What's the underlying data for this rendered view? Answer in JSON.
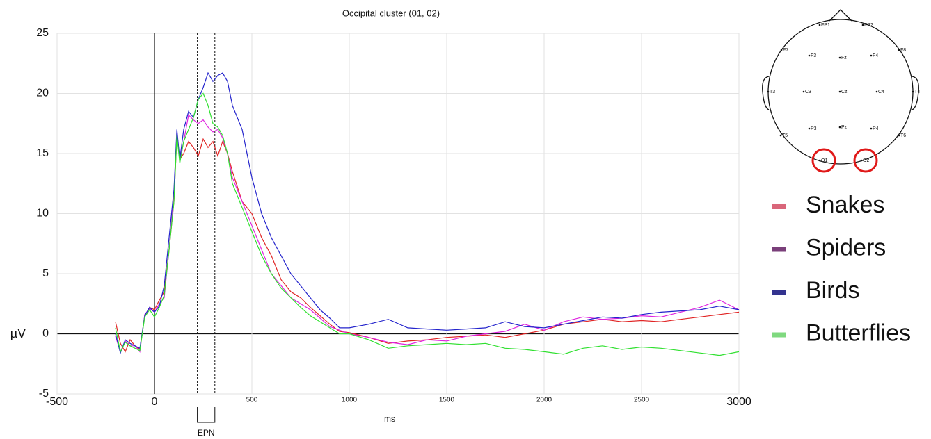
{
  "chart_data": {
    "type": "line",
    "title": "Occipital cluster (01, 02)",
    "xlabel": "ms",
    "ylabel": "µV",
    "x": [
      -200,
      -175,
      -150,
      -125,
      -100,
      -75,
      -50,
      -25,
      0,
      25,
      50,
      75,
      100,
      115,
      130,
      150,
      175,
      200,
      225,
      250,
      275,
      300,
      325,
      350,
      375,
      400,
      450,
      500,
      550,
      600,
      650,
      700,
      750,
      800,
      850,
      900,
      950,
      1000,
      1100,
      1200,
      1300,
      1400,
      1500,
      1600,
      1700,
      1800,
      1900,
      2000,
      2100,
      2200,
      2300,
      2400,
      2500,
      2600,
      2700,
      2800,
      2900,
      3000
    ],
    "series": [
      {
        "name": "Snakes",
        "color": "#e02424",
        "legend_color": "#d9667a",
        "values": [
          1.0,
          -0.8,
          -1.5,
          -0.5,
          -1.0,
          -1.3,
          1.5,
          2.2,
          2.0,
          2.8,
          3.5,
          7,
          11,
          16.5,
          14.5,
          15,
          16,
          15.5,
          14.8,
          16.2,
          15.5,
          16,
          14.8,
          16,
          15,
          13.5,
          11,
          10,
          8,
          6.5,
          4.5,
          3.5,
          3,
          2.2,
          1.5,
          0.8,
          0.2,
          0.1,
          -0.3,
          -0.8,
          -0.6,
          -0.5,
          -0.3,
          -0.2,
          -0.1,
          -0.3,
          0,
          0.3,
          0.8,
          1.0,
          1.2,
          1.0,
          1.1,
          1.0,
          1.2,
          1.4,
          1.6,
          1.8
        ]
      },
      {
        "name": "Spiders",
        "color": "#e024e0",
        "legend_color": "#7a3f7a",
        "values": [
          -0.2,
          -1.5,
          -0.6,
          -1.0,
          -1.0,
          -1.5,
          1.6,
          2.1,
          1.8,
          2.5,
          3,
          7,
          11.5,
          16.8,
          14.5,
          16,
          18.2,
          17.8,
          17.5,
          17.8,
          17.2,
          16.8,
          17,
          16.3,
          15,
          13,
          11,
          9,
          7,
          5,
          4,
          3,
          2.5,
          2,
          1.3,
          0.6,
          0.3,
          0,
          -0.3,
          -0.7,
          -0.9,
          -0.5,
          -0.6,
          -0.2,
          0,
          0.2,
          0.8,
          0.3,
          1.0,
          1.4,
          1.2,
          1.3,
          1.5,
          1.4,
          1.8,
          2.2,
          2.8,
          2.0
        ]
      },
      {
        "name": "Birds",
        "color": "#2424cc",
        "legend_color": "#33338f",
        "values": [
          0,
          -1.6,
          -0.5,
          -0.8,
          -1.0,
          -1.2,
          1.5,
          2.2,
          1.8,
          2.3,
          4,
          8,
          12,
          17,
          14.5,
          17,
          18.5,
          18,
          19.5,
          20.5,
          21.7,
          21,
          21.5,
          21.7,
          21,
          19,
          17,
          13,
          10,
          8,
          6.5,
          5,
          4,
          3,
          2,
          1.3,
          0.5,
          0.5,
          0.8,
          1.2,
          0.5,
          0.4,
          0.3,
          0.4,
          0.5,
          1.0,
          0.6,
          0.5,
          0.8,
          1.1,
          1.4,
          1.3,
          1.6,
          1.8,
          1.9,
          2.0,
          2.3,
          2.0
        ]
      },
      {
        "name": "Butterflies",
        "color": "#30e030",
        "legend_color": "#7fd97f",
        "values": [
          0.5,
          -1.5,
          -0.7,
          -1.0,
          -1.2,
          -1.4,
          1.4,
          2.0,
          1.4,
          2.2,
          3.2,
          7,
          11,
          16.5,
          14.2,
          16,
          17,
          18,
          19.5,
          20,
          19,
          17.5,
          17.2,
          16.5,
          15,
          12.5,
          10.5,
          8.5,
          6.5,
          5,
          3.8,
          3,
          2.2,
          1.5,
          1,
          0.5,
          0,
          0,
          -0.5,
          -1.2,
          -1.0,
          -0.9,
          -0.8,
          -0.9,
          -0.8,
          -1.2,
          -1.3,
          -1.5,
          -1.7,
          -1.2,
          -1.0,
          -1.3,
          -1.1,
          -1.2,
          -1.4,
          -1.6,
          -1.8,
          -1.5
        ]
      }
    ],
    "xlim": [
      -500,
      3000
    ],
    "xticks": [
      -500,
      0,
      500,
      1000,
      1500,
      2000,
      2500,
      3000
    ],
    "ylim": [
      -5,
      25
    ],
    "yticks": [
      -5,
      0,
      5,
      10,
      15,
      20,
      25
    ],
    "grid": true,
    "epn": {
      "label": "EPN",
      "x": [
        220,
        310
      ]
    }
  },
  "head_map": {
    "electrodes": [
      {
        "label": "FP1"
      },
      {
        "label": "FP2"
      },
      {
        "label": "F7"
      },
      {
        "label": "F3"
      },
      {
        "label": "Fz"
      },
      {
        "label": "F4"
      },
      {
        "label": "F8"
      },
      {
        "label": "T3"
      },
      {
        "label": "C3"
      },
      {
        "label": "Cz"
      },
      {
        "label": "C4"
      },
      {
        "label": "T4"
      },
      {
        "label": "T5"
      },
      {
        "label": "P3"
      },
      {
        "label": "Pz"
      },
      {
        "label": "P4"
      },
      {
        "label": "T6"
      },
      {
        "label": "O1",
        "highlighted": true
      },
      {
        "label": "O2",
        "highlighted": true
      }
    ]
  }
}
